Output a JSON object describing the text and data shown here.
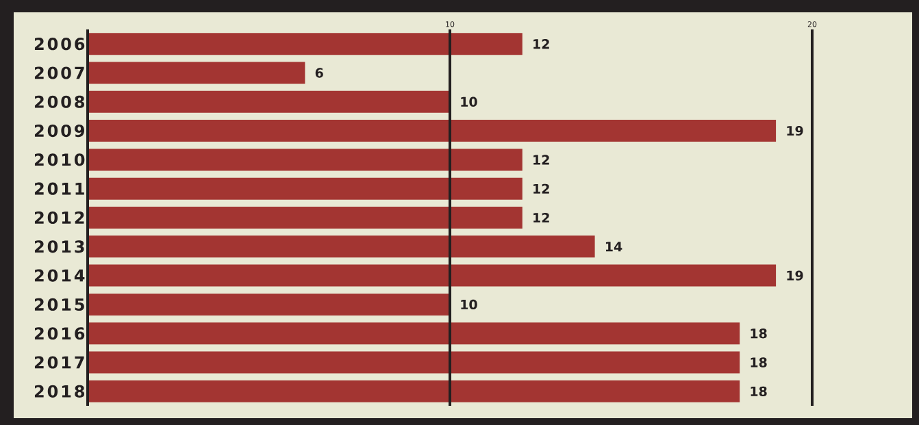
{
  "chart_data": {
    "type": "bar",
    "orientation": "horizontal",
    "categories": [
      "2006",
      "2007",
      "2008",
      "2009",
      "2010",
      "2011",
      "2012",
      "2013",
      "2014",
      "2015",
      "2016",
      "2017",
      "2018"
    ],
    "values": [
      12,
      6,
      10,
      19,
      12,
      12,
      12,
      14,
      19,
      10,
      18,
      18,
      18
    ],
    "color": "#a33532",
    "xlim": [
      0,
      20
    ],
    "xticks": [
      {
        "value": 0,
        "label": null
      },
      10,
      20
    ],
    "grid": "x",
    "data_labels": true
  }
}
